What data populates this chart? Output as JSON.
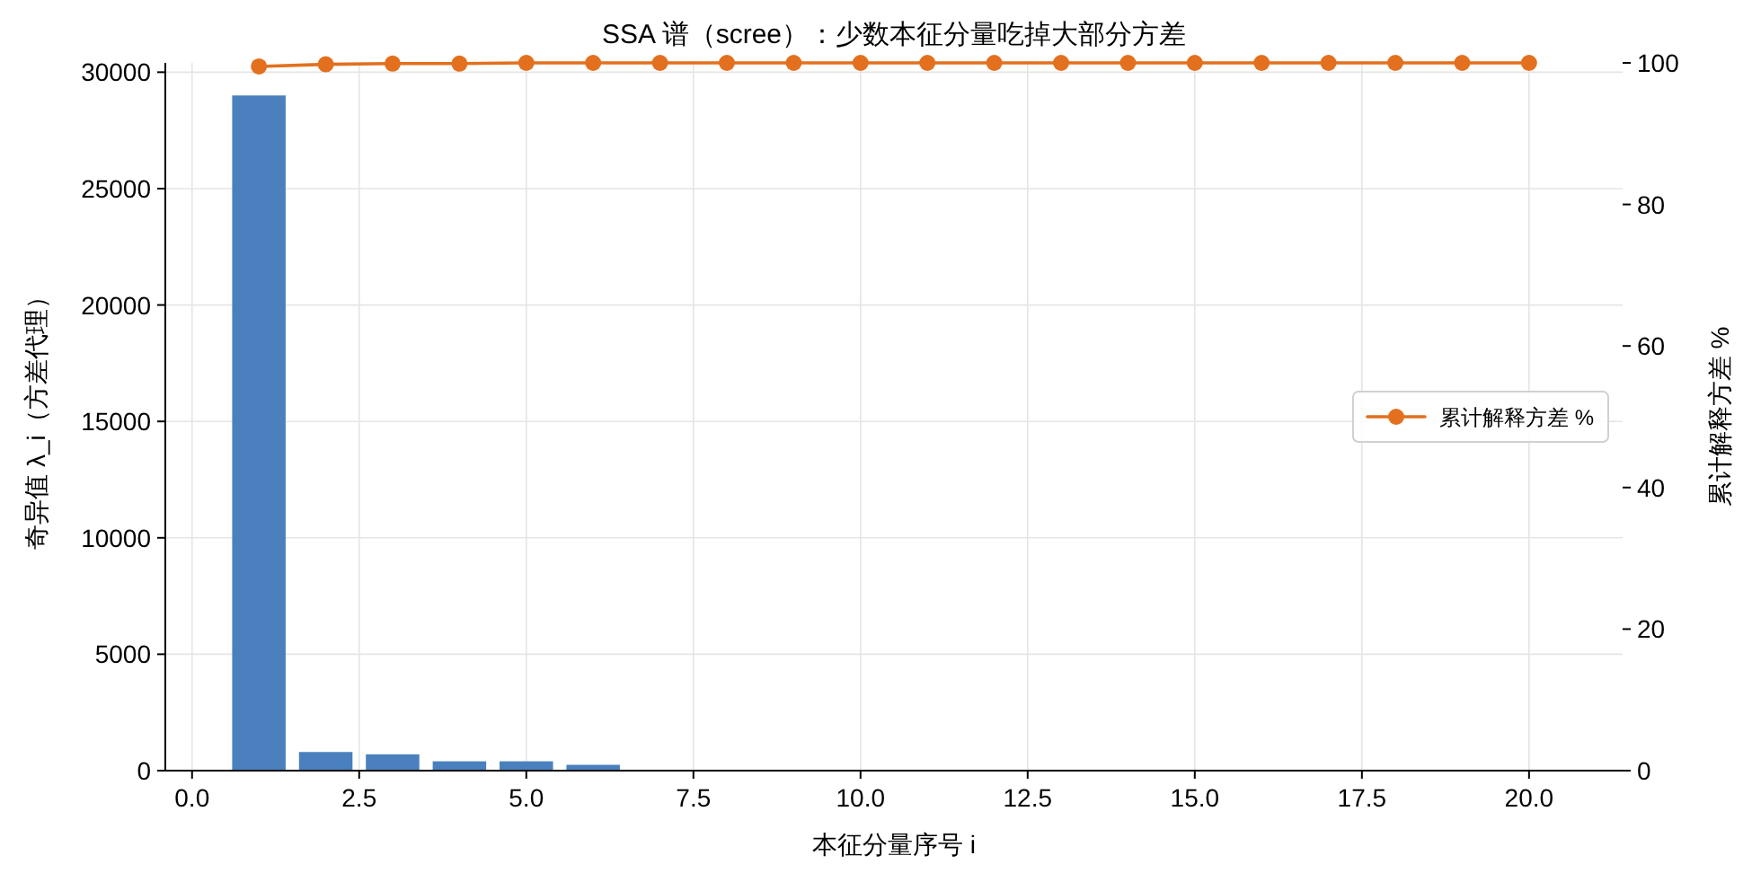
{
  "chart_data": {
    "type": "bar",
    "title": "SSA 谱（scree）：少数本征分量吃掉大部分方差",
    "xlabel": "本征分量序号 i",
    "ylabel": "奇异值 λ_i（方差代理）",
    "y2label": "累计解释方差 %",
    "x": [
      1,
      2,
      3,
      4,
      5,
      6,
      7,
      8,
      9,
      10,
      11,
      12,
      13,
      14,
      15,
      16,
      17,
      18,
      19,
      20
    ],
    "series": [
      {
        "color": "#4a80be",
        "values": [
          29000,
          800,
          700,
          400,
          400,
          250,
          0,
          0,
          0,
          0,
          0,
          0,
          0,
          0,
          0,
          0,
          0,
          0,
          0,
          0
        ]
      },
      {
        "type": "line",
        "name": "累计解释方差 %",
        "color": "#e2701f",
        "axis": "y2",
        "values": [
          99.5,
          99.8,
          99.9,
          99.9,
          100,
          100,
          100,
          100,
          100,
          100,
          100,
          100,
          100,
          100,
          100,
          100,
          100,
          100,
          100,
          100
        ]
      }
    ],
    "xlim": [
      -0.4,
      21.4
    ],
    "xticks": [
      {
        "value": 0,
        "label": "0.0"
      },
      {
        "value": 2.5,
        "label": "2.5"
      },
      {
        "value": 5,
        "label": "5.0"
      },
      {
        "value": 7.5,
        "label": "7.5"
      },
      {
        "value": 10,
        "label": "10.0"
      },
      {
        "value": 12.5,
        "label": "12.5"
      },
      {
        "value": 15,
        "label": "15.0"
      },
      {
        "value": 17.5,
        "label": "17.5"
      },
      {
        "value": 20,
        "label": "20.0"
      }
    ],
    "ylim": [
      0,
      30400
    ],
    "yticks": [
      0,
      5000,
      10000,
      15000,
      20000,
      25000,
      30000
    ],
    "y2lim": [
      0,
      100
    ],
    "y2ticks": [
      0,
      20,
      40,
      60,
      80,
      100
    ],
    "grid": true,
    "legend": "right",
    "marker": "circle",
    "line_style": "solid"
  }
}
